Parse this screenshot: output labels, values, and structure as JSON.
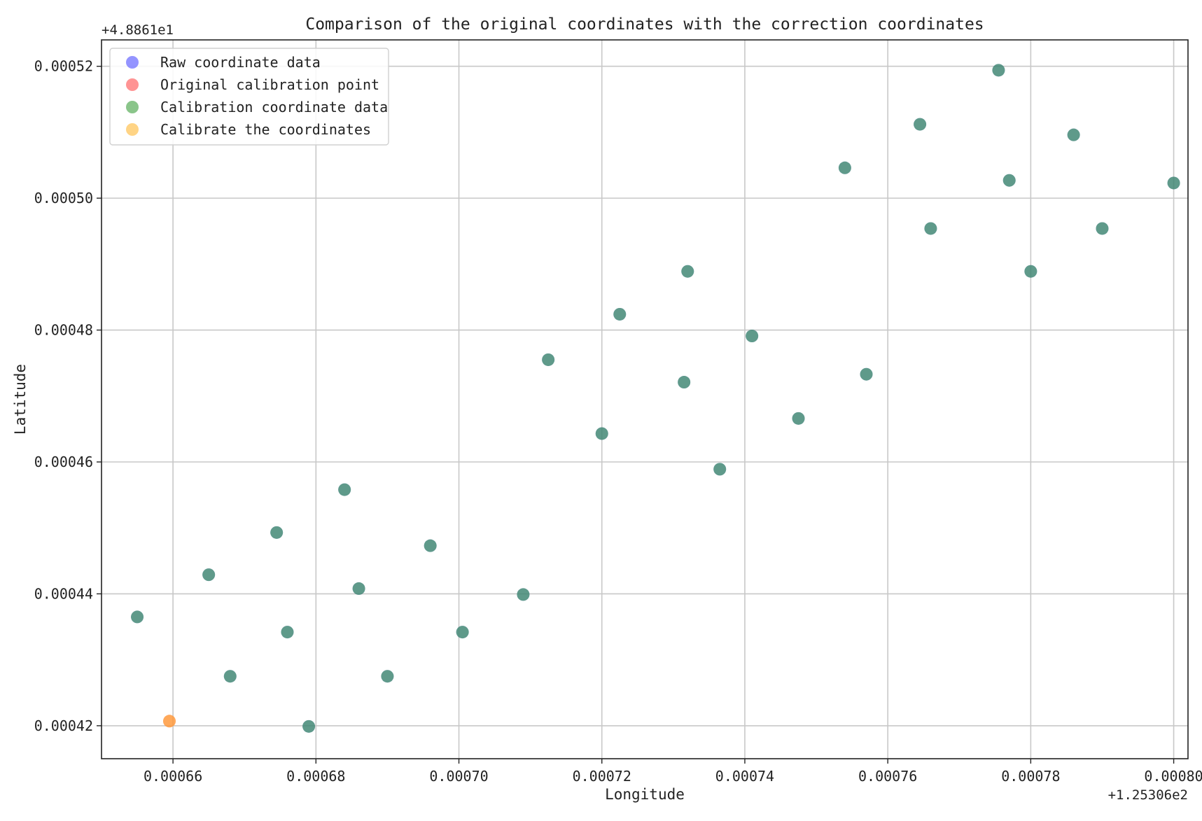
{
  "chart_data": {
    "type": "scatter",
    "title": "Comparison of the original coordinates with the correction coordinates",
    "xlabel": "Longitude",
    "ylabel": "Latitude",
    "x_offset_label": "+1.25306e2",
    "y_offset_label": "+4.8861e1",
    "xlim": [
      0.00065,
      0.000802
    ],
    "ylim": [
      0.000415,
      0.000524
    ],
    "x_ticks": [
      0.00066,
      0.00068,
      0.0007,
      0.00072,
      0.00074,
      0.00076,
      0.00078,
      0.0008
    ],
    "x_tick_labels": [
      "0.00066",
      "0.00068",
      "0.00070",
      "0.00072",
      "0.00074",
      "0.00076",
      "0.00078",
      "0.00080"
    ],
    "y_ticks": [
      0.00042,
      0.00044,
      0.00046,
      0.00048,
      0.0005,
      0.00052
    ],
    "y_tick_labels": [
      "0.00042",
      "0.00044",
      "0.00046",
      "0.00048",
      "0.00050",
      "0.00052"
    ],
    "grid": true,
    "legend_position": "top-left",
    "series": [
      {
        "name": "Raw coordinate data",
        "color": "#4d4dff",
        "points": [
          [
            0.000655,
            0.0004365
          ],
          [
            0.000665,
            0.0004429
          ],
          [
            0.000668,
            0.0004275
          ],
          [
            0.0006745,
            0.0004493
          ],
          [
            0.000676,
            0.0004342
          ],
          [
            0.000679,
            0.0004199
          ],
          [
            0.000684,
            0.0004558
          ],
          [
            0.000686,
            0.0004408
          ],
          [
            0.00069,
            0.0004275
          ],
          [
            0.000696,
            0.0004473
          ],
          [
            0.0007005,
            0.0004342
          ],
          [
            0.000709,
            0.0004399
          ],
          [
            0.0007125,
            0.0004755
          ],
          [
            0.00072,
            0.0004643
          ],
          [
            0.0007225,
            0.0004824
          ],
          [
            0.0007315,
            0.0004721
          ],
          [
            0.000732,
            0.0004889
          ],
          [
            0.0007365,
            0.0004589
          ],
          [
            0.000741,
            0.0004791
          ],
          [
            0.0007475,
            0.0004666
          ],
          [
            0.000754,
            0.0005046
          ],
          [
            0.000757,
            0.0004733
          ],
          [
            0.0007645,
            0.0005112
          ],
          [
            0.000766,
            0.0004954
          ],
          [
            0.0007755,
            0.0005194
          ],
          [
            0.000777,
            0.0005027
          ],
          [
            0.00078,
            0.0004889
          ],
          [
            0.000786,
            0.0005096
          ],
          [
            0.00079,
            0.0004954
          ],
          [
            0.0008,
            0.0005023
          ]
        ]
      },
      {
        "name": "Original calibration point",
        "color": "#ff4d4d",
        "points": [
          [
            0.0006595,
            0.0004207
          ]
        ]
      },
      {
        "name": "Calibration coordinate data",
        "color": "#3c9e3c",
        "points": [
          [
            0.000655,
            0.0004365
          ],
          [
            0.000665,
            0.0004429
          ],
          [
            0.000668,
            0.0004275
          ],
          [
            0.0006745,
            0.0004493
          ],
          [
            0.000676,
            0.0004342
          ],
          [
            0.000679,
            0.0004199
          ],
          [
            0.000684,
            0.0004558
          ],
          [
            0.000686,
            0.0004408
          ],
          [
            0.00069,
            0.0004275
          ],
          [
            0.000696,
            0.0004473
          ],
          [
            0.0007005,
            0.0004342
          ],
          [
            0.000709,
            0.0004399
          ],
          [
            0.0007125,
            0.0004755
          ],
          [
            0.00072,
            0.0004643
          ],
          [
            0.0007225,
            0.0004824
          ],
          [
            0.0007315,
            0.0004721
          ],
          [
            0.000732,
            0.0004889
          ],
          [
            0.0007365,
            0.0004589
          ],
          [
            0.000741,
            0.0004791
          ],
          [
            0.0007475,
            0.0004666
          ],
          [
            0.000754,
            0.0005046
          ],
          [
            0.000757,
            0.0004733
          ],
          [
            0.0007645,
            0.0005112
          ],
          [
            0.000766,
            0.0004954
          ],
          [
            0.0007755,
            0.0005194
          ],
          [
            0.000777,
            0.0005027
          ],
          [
            0.00078,
            0.0004889
          ],
          [
            0.000786,
            0.0005096
          ],
          [
            0.00079,
            0.0004954
          ],
          [
            0.0008,
            0.0005023
          ]
        ]
      },
      {
        "name": "Calibrate the coordinates",
        "color": "#ffb833",
        "points": [
          [
            0.0006595,
            0.0004207
          ]
        ]
      }
    ]
  }
}
